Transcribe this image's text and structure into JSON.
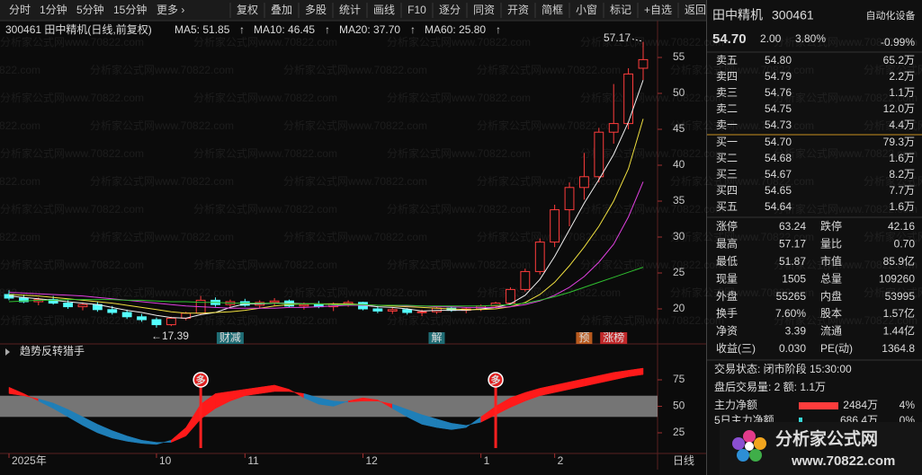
{
  "toolbar": {
    "periods": [
      "分时",
      "1分钟",
      "5分钟",
      "15分钟",
      "更多 ›"
    ],
    "buttons": [
      "复权",
      "叠加",
      "多股",
      "统计",
      "画线",
      "F10",
      "逐分",
      "同资",
      "开资",
      "简框",
      "小窗",
      "标记",
      "+自选",
      "返回"
    ]
  },
  "chart_data": [
    {
      "type": "candlestick",
      "title": "300461 田中精机(日线,前复权)",
      "watermark": "分析家公式网www.70822.com",
      "open": [
        22.0,
        21.5,
        21.0,
        21.3,
        20.8,
        20.3,
        20.6,
        19.9,
        19.5,
        18.9,
        18.5,
        17.8,
        18.7,
        19.4,
        21.2,
        20.6,
        21.0,
        20.5,
        20.9,
        21.1,
        20.4,
        20.6,
        20.3,
        20.7,
        20.9,
        20.0,
        19.7,
        19.9,
        19.5,
        19.6,
        20.1,
        19.8,
        20.0,
        20.4,
        20.8,
        22.7,
        25.2,
        29.3,
        33.8,
        36.9,
        38.4,
        44.6,
        45.8,
        53.5
      ],
      "high": [
        22.6,
        22.0,
        21.6,
        21.8,
        21.2,
        20.9,
        21.0,
        20.4,
        19.9,
        19.3,
        18.8,
        18.9,
        19.6,
        21.8,
        21.6,
        21.3,
        21.4,
        21.2,
        21.5,
        21.3,
        20.9,
        21.1,
        20.9,
        21.2,
        21.0,
        20.4,
        20.2,
        20.1,
        19.9,
        20.3,
        20.4,
        20.2,
        20.6,
        21.0,
        23.0,
        25.6,
        29.8,
        34.5,
        37.6,
        41.7,
        45.2,
        51.3,
        53.5,
        57.17
      ],
      "low": [
        21.2,
        20.8,
        20.5,
        20.6,
        20.0,
        19.8,
        19.6,
        19.2,
        18.6,
        18.2,
        17.39,
        17.6,
        18.4,
        19.2,
        20.3,
        20.2,
        20.3,
        20.1,
        20.4,
        20.2,
        19.9,
        20.1,
        19.7,
        20.3,
        19.8,
        19.4,
        19.3,
        19.2,
        19.0,
        19.3,
        19.6,
        19.4,
        19.7,
        20.1,
        20.6,
        22.4,
        24.8,
        28.6,
        31.5,
        35.2,
        37.6,
        43.0,
        45.0,
        51.87
      ],
      "close": [
        21.5,
        21.0,
        21.3,
        20.8,
        20.3,
        20.6,
        19.9,
        19.5,
        18.9,
        18.5,
        17.8,
        18.7,
        19.4,
        21.2,
        20.6,
        21.0,
        20.5,
        20.9,
        21.1,
        20.4,
        20.6,
        20.3,
        20.7,
        20.9,
        20.0,
        19.7,
        19.9,
        19.5,
        19.6,
        20.1,
        19.8,
        20.0,
        20.4,
        20.8,
        22.7,
        25.2,
        29.3,
        33.8,
        36.9,
        38.4,
        44.6,
        45.8,
        52.7,
        54.7
      ],
      "up_color": "#ff3c3c",
      "down_color": "#54fcfc",
      "background": "#0b0b0b",
      "series": [
        {
          "name": "MA5: 51.85",
          "trend": "↑",
          "color": "#f0f0f0",
          "values": [
            21.8,
            21.6,
            21.4,
            21.2,
            21.0,
            20.8,
            20.6,
            20.2,
            19.8,
            19.5,
            19.1,
            18.8,
            18.7,
            19.2,
            19.5,
            20.2,
            20.7,
            20.7,
            20.8,
            20.8,
            20.7,
            20.7,
            20.6,
            20.6,
            20.5,
            20.3,
            20.2,
            20.0,
            19.7,
            19.8,
            19.8,
            19.8,
            20.0,
            20.2,
            20.7,
            21.9,
            24.1,
            27.3,
            31.0,
            34.7,
            38.0,
            41.5,
            46.0,
            51.85
          ]
        },
        {
          "name": "MA10: 46.45",
          "trend": "↑",
          "color": "#f0e040",
          "values": [
            22.0,
            21.9,
            21.8,
            21.6,
            21.4,
            21.2,
            21.0,
            20.8,
            20.5,
            20.2,
            19.9,
            19.6,
            19.4,
            19.4,
            19.5,
            19.6,
            19.8,
            20.1,
            20.4,
            20.6,
            20.7,
            20.7,
            20.7,
            20.7,
            20.6,
            20.5,
            20.4,
            20.3,
            20.2,
            20.1,
            20.0,
            19.9,
            19.9,
            20.0,
            20.3,
            20.9,
            22.0,
            23.7,
            26.0,
            28.6,
            31.5,
            35.0,
            39.5,
            46.45
          ]
        },
        {
          "name": "MA20: 37.70",
          "trend": "↑",
          "color": "#e040e0",
          "values": [
            22.3,
            22.2,
            22.1,
            22.0,
            21.9,
            21.8,
            21.6,
            21.4,
            21.2,
            21.0,
            20.8,
            20.6,
            20.4,
            20.3,
            20.2,
            20.1,
            20.1,
            20.1,
            20.1,
            20.2,
            20.2,
            20.3,
            20.4,
            20.5,
            20.5,
            20.5,
            20.5,
            20.4,
            20.4,
            20.3,
            20.3,
            20.2,
            20.2,
            20.2,
            20.3,
            20.6,
            21.1,
            21.9,
            23.0,
            24.5,
            26.5,
            29.0,
            32.8,
            37.7
          ]
        },
        {
          "name": "MA60: 25.80",
          "trend": "↑",
          "color": "#30c030",
          "values": [
            21.0,
            21.1,
            21.2,
            21.2,
            21.3,
            21.3,
            21.3,
            21.3,
            21.2,
            21.2,
            21.1,
            21.0,
            21.0,
            20.9,
            20.9,
            20.8,
            20.8,
            20.8,
            20.8,
            20.7,
            20.7,
            20.7,
            20.6,
            20.6,
            20.6,
            20.5,
            20.5,
            20.5,
            20.4,
            20.4,
            20.4,
            20.4,
            20.4,
            20.5,
            20.6,
            20.8,
            21.2,
            21.7,
            22.3,
            23.0,
            23.7,
            24.4,
            25.1,
            25.8
          ]
        }
      ],
      "trend_color": "#ff3c3c",
      "high_label": "57.17",
      "low_label": "←17.39",
      "events": [
        null,
        null,
        null,
        null,
        null,
        null,
        null,
        null,
        null,
        null,
        null,
        null,
        null,
        null,
        null,
        {
          "label": "财减",
          "color": "#1f6c74"
        },
        null,
        null,
        null,
        null,
        null,
        null,
        null,
        null,
        null,
        null,
        null,
        null,
        null,
        {
          "label": "解",
          "color": "#1f6c74"
        },
        null,
        null,
        null,
        null,
        null,
        null,
        null,
        null,
        null,
        {
          "label": "预",
          "color": "#b85a1e"
        },
        null,
        {
          "label": "涨榜",
          "color": "#c0282a"
        },
        null,
        null
      ],
      "ylim": [
        15.25,
        60.25
      ],
      "yticks": [
        20,
        25,
        30,
        35,
        40,
        45,
        50,
        55
      ]
    },
    {
      "type": "band",
      "title": "趋势反转猎手",
      "fast": [
        68,
        62,
        55,
        48,
        40,
        32,
        25,
        20,
        17,
        15,
        14,
        18,
        30,
        52,
        62,
        64,
        66,
        68,
        70,
        66,
        58,
        52,
        50,
        55,
        58,
        56,
        48,
        40,
        33,
        30,
        28,
        30,
        40,
        50,
        58,
        63,
        67,
        70,
        73,
        76,
        79,
        82,
        84,
        86
      ],
      "slow": [
        62,
        60,
        57,
        53,
        47,
        40,
        33,
        27,
        22,
        18,
        16,
        16,
        22,
        38,
        48,
        55,
        60,
        62,
        64,
        64,
        62,
        58,
        55,
        54,
        55,
        55,
        52,
        47,
        42,
        38,
        34,
        32,
        35,
        42,
        49,
        55,
        60,
        63,
        66,
        69,
        72,
        75,
        78,
        80
      ],
      "up_color": "#ff1a1a",
      "down_color": "#1f7fb8",
      "zone": [
        40,
        60
      ],
      "zone_color": "#9a9a9a",
      "signals": [
        null,
        null,
        null,
        null,
        null,
        null,
        null,
        null,
        null,
        null,
        null,
        null,
        null,
        "多",
        null,
        null,
        null,
        null,
        null,
        null,
        null,
        null,
        null,
        null,
        null,
        null,
        null,
        null,
        null,
        null,
        null,
        null,
        null,
        "多",
        null,
        null,
        null,
        null,
        null,
        null,
        null,
        null,
        null,
        null
      ],
      "categories": [
        "2025年",
        null,
        null,
        null,
        null,
        null,
        null,
        null,
        null,
        null,
        "10",
        null,
        null,
        null,
        null,
        null,
        "11",
        null,
        null,
        null,
        null,
        null,
        null,
        null,
        "12",
        null,
        null,
        null,
        null,
        null,
        null,
        null,
        "1",
        null,
        null,
        null,
        null,
        "2",
        null,
        null,
        null,
        null,
        null,
        null
      ],
      "period_label": "日线",
      "ylim": [
        5.5,
        107.2
      ],
      "yticks": [
        25,
        50,
        75
      ]
    }
  ],
  "quote": {
    "name": "田中精机",
    "code": "300461",
    "sector": "自动化设备",
    "sector_pct": "-0.99%",
    "price": "54.70",
    "change": "2.00",
    "pct": "3.80%",
    "price_color": "#ff3c3c",
    "volume_color": "#e6c229",
    "asks": [
      [
        "卖五",
        "54.80",
        "65.2万"
      ],
      [
        "卖四",
        "54.79",
        "2.2万"
      ],
      [
        "卖三",
        "54.76",
        "1.1万"
      ],
      [
        "卖二",
        "54.75",
        "12.0万"
      ],
      [
        "卖一",
        "54.73",
        "4.4万"
      ]
    ],
    "bids": [
      [
        "买一",
        "54.70",
        "79.3万"
      ],
      [
        "买二",
        "54.68",
        "1.6万"
      ],
      [
        "买三",
        "54.67",
        "8.2万"
      ],
      [
        "买四",
        "54.65",
        "7.7万"
      ],
      [
        "买五",
        "54.64",
        "1.6万"
      ]
    ],
    "stats": [
      {
        "cells": [
          "涨停",
          "63.24",
          "跌停",
          "42.16"
        ],
        "colors": [
          "#ff3c3c",
          "#38d8d8"
        ]
      },
      {
        "cells": [
          "最高",
          "57.17",
          "量比",
          "0.70"
        ],
        "colors": [
          "#ff3c3c",
          "#38d8d8"
        ]
      },
      {
        "cells": [
          "最低",
          "51.87",
          "市值",
          "85.9亿"
        ],
        "colors": [
          "#38d8d8",
          "#dcdcdc"
        ]
      },
      {
        "cells": [
          "现量",
          "1505",
          "总量",
          "109260"
        ],
        "colors": [
          "#b040d0",
          "#e6c229"
        ]
      },
      {
        "cells": [
          "外盘",
          "55265",
          "内盘",
          "53995"
        ],
        "colors": [
          "#ff3c3c",
          "#38d8d8"
        ]
      },
      {
        "cells": [
          "换手",
          "7.60%",
          "股本",
          "1.57亿"
        ],
        "colors": [
          "#dcdcdc",
          "#dcdcdc"
        ]
      },
      {
        "cells": [
          "净资",
          "3.39",
          "流通",
          "1.44亿"
        ],
        "colors": [
          "#dcdcdc",
          "#dcdcdc"
        ]
      },
      {
        "cells": [
          "收益(三)",
          "0.030",
          "PE(动)",
          "1364.8"
        ],
        "colors": [
          "#dcdcdc",
          "#dcdcdc"
        ]
      }
    ],
    "status": "交易状态: 闭市阶段 15:30:00",
    "after_hours": "盘后交易量: 2 额: 1.1万",
    "flows": [
      {
        "cells": [
          "主力净额",
          "2484万",
          "4%"
        ],
        "color": "#ff3c3c"
      },
      {
        "cells": [
          "5日主力净额",
          "686.4万",
          "0%"
        ],
        "color": "#38d8d8"
      }
    ]
  },
  "logo": {
    "title": "分析家公式网",
    "url": "www.70822.com"
  }
}
